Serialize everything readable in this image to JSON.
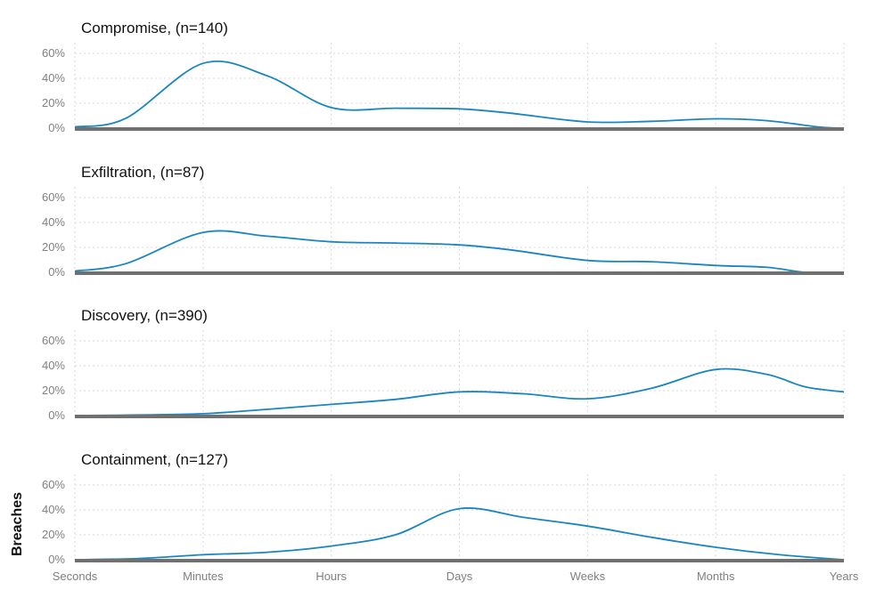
{
  "chart_data": {
    "type": "area",
    "ylabel": "Breaches",
    "x_categories": [
      "Seconds",
      "Minutes",
      "Hours",
      "Days",
      "Weeks",
      "Months",
      "Years"
    ],
    "y_ticks": [
      "0%",
      "20%",
      "40%",
      "60%"
    ],
    "ylim": [
      0,
      0.6
    ],
    "grid": true,
    "line_color": "#1a85c3",
    "baseline_color": "#707070",
    "panels": [
      {
        "title": "Compromise, (n=140)",
        "series": {
          "x": [
            0,
            0.4,
            1,
            1.5,
            2,
            2.5,
            3,
            3.4,
            4,
            4.5,
            5,
            5.4,
            5.8,
            6
          ],
          "y": [
            0.01,
            0.08,
            0.52,
            0.42,
            0.165,
            0.16,
            0.155,
            0.12,
            0.05,
            0.055,
            0.075,
            0.06,
            0.01,
            0.0
          ]
        }
      },
      {
        "title": "Exfiltration, (n=87)",
        "series": {
          "x": [
            0,
            0.4,
            1,
            1.5,
            2,
            2.5,
            3,
            3.4,
            4,
            4.5,
            5,
            5.4,
            5.7,
            6
          ],
          "y": [
            0.01,
            0.07,
            0.32,
            0.29,
            0.245,
            0.235,
            0.22,
            0.18,
            0.095,
            0.085,
            0.055,
            0.04,
            0.0,
            0.0
          ]
        }
      },
      {
        "title": "Discovery, (n=390)",
        "series": {
          "x": [
            0,
            0.5,
            1,
            1.5,
            2,
            2.5,
            3,
            3.5,
            4,
            4.5,
            5,
            5.4,
            5.7,
            6
          ],
          "y": [
            0.0,
            0.005,
            0.015,
            0.05,
            0.09,
            0.13,
            0.19,
            0.175,
            0.135,
            0.22,
            0.37,
            0.33,
            0.23,
            0.19
          ]
        }
      },
      {
        "title": "Containment, (n=127)",
        "series": {
          "x": [
            0,
            0.5,
            1,
            1.5,
            2,
            2.5,
            3,
            3.5,
            4,
            4.5,
            5,
            5.5,
            6
          ],
          "y": [
            0.0,
            0.01,
            0.04,
            0.06,
            0.11,
            0.2,
            0.41,
            0.34,
            0.27,
            0.18,
            0.1,
            0.04,
            0.0
          ]
        }
      }
    ]
  }
}
